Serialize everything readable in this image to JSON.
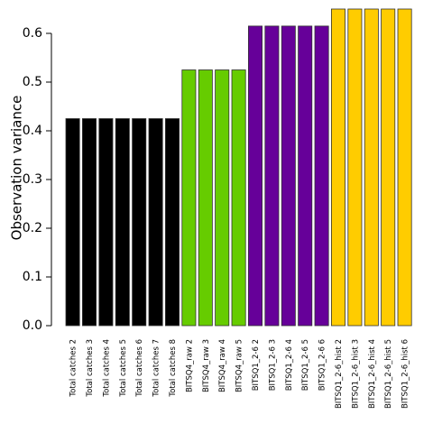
{
  "chart_data": {
    "type": "bar",
    "title": "",
    "xlabel": "",
    "ylabel": "Observation variance",
    "ylim": [
      0,
      0.65
    ],
    "yticks": [
      0.0,
      0.1,
      0.2,
      0.3,
      0.4,
      0.5,
      0.6
    ],
    "ytick_labels": [
      "0.0",
      "0.1",
      "0.2",
      "0.3",
      "0.4",
      "0.5",
      "0.6"
    ],
    "grid": false,
    "categories": [
      "Total catches 2",
      "Total catches 3",
      "Total catches 4",
      "Total catches 5",
      "Total catches 6",
      "Total catches 7",
      "Total catches 8",
      "BITSQ4_raw 2",
      "BITSQ4_raw 3",
      "BITSQ4_raw 4",
      "BITSQ4_raw 5",
      "BITSQ1_2-6 2",
      "BITSQ1_2-6 3",
      "BITSQ1_2-6 4",
      "BITSQ1_2-6 5",
      "BITSQ1_2-6 6",
      "BITSQ1_2-6_hist 2",
      "BITSQ1_2-6_hist 3",
      "BITSQ1_2-6_hist 4",
      "BITSQ1_2-6_hist 5",
      "BITSQ1_2-6_hist 6"
    ],
    "values": [
      0.425,
      0.425,
      0.425,
      0.425,
      0.425,
      0.425,
      0.425,
      0.525,
      0.525,
      0.525,
      0.525,
      0.615,
      0.615,
      0.615,
      0.615,
      0.615,
      0.65,
      0.65,
      0.65,
      0.65,
      0.65
    ],
    "bar_colors": [
      "#000000",
      "#000000",
      "#000000",
      "#000000",
      "#000000",
      "#000000",
      "#000000",
      "#66cc00",
      "#66cc00",
      "#66cc00",
      "#66cc00",
      "#660099",
      "#660099",
      "#660099",
      "#660099",
      "#660099",
      "#ffcc00",
      "#ffcc00",
      "#ffcc00",
      "#ffcc00",
      "#ffcc00"
    ],
    "bar_edge_color": "#333333"
  }
}
